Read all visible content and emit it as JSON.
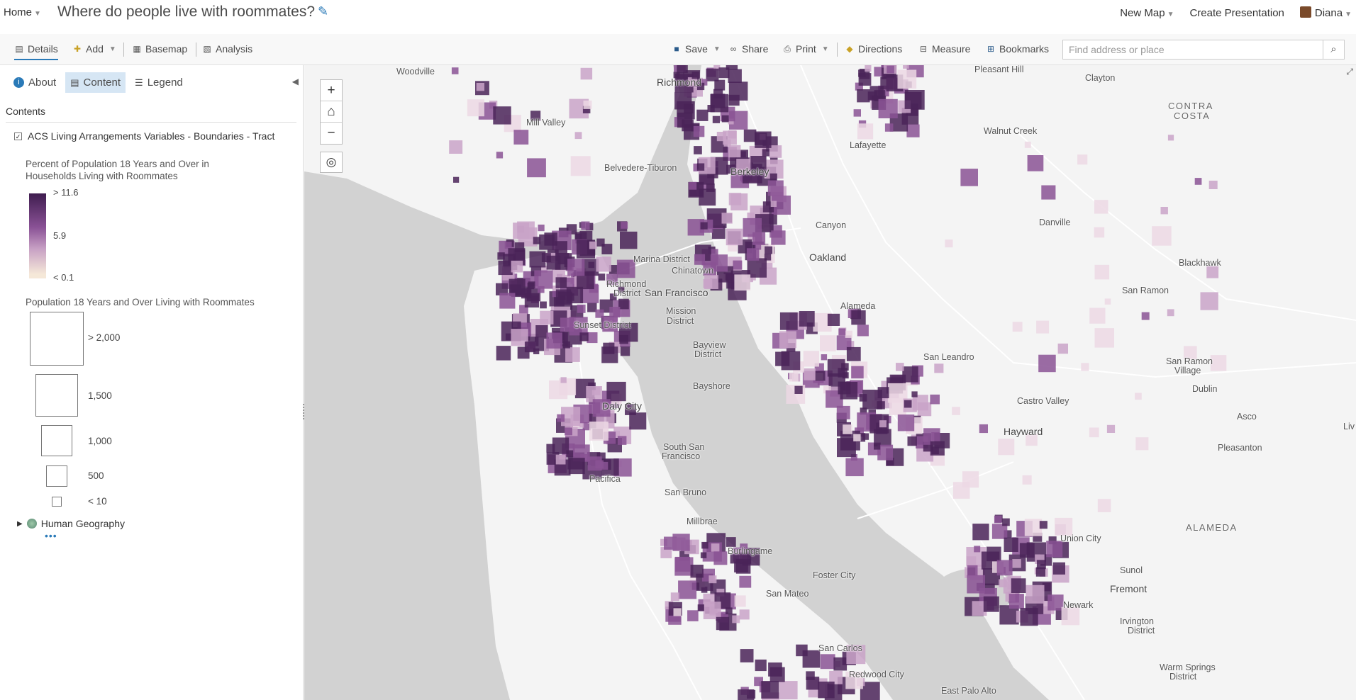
{
  "topbar": {
    "home": "Home",
    "map_title": "Where do people live with roommates?",
    "new_map": "New Map",
    "create_presentation": "Create Presentation",
    "user": "Diana"
  },
  "toolbar": {
    "details": "Details",
    "add": "Add",
    "basemap": "Basemap",
    "analysis": "Analysis",
    "save": "Save",
    "share": "Share",
    "print": "Print",
    "directions": "Directions",
    "measure": "Measure",
    "bookmarks": "Bookmarks",
    "search_placeholder": "Find address or place"
  },
  "sidebar": {
    "tabs": {
      "about": "About",
      "content": "Content",
      "legend": "Legend"
    },
    "contents_heading": "Contents",
    "layer_name": "ACS Living Arrangements Variables - Boundaries - Tract",
    "legend_color_title_1": "Percent of Population 18 Years and Over in",
    "legend_color_title_2": "Households Living with Roommates",
    "ramp_high": "> 11.6",
    "ramp_mid": "5.9",
    "ramp_low": "< 0.1",
    "legend_size_title": "Population 18 Years and Over Living with Roommates",
    "size_labels": [
      "> 2,000",
      "1,500",
      "1,000",
      "500",
      "< 10"
    ],
    "human_geography": "Human Geography",
    "more": "•••"
  },
  "map": {
    "colors": {
      "water": "#d2d2d2",
      "land": "#f4f4f4",
      "dark": "#4a2358",
      "mid": "#8a5294",
      "light": "#c9a3c8",
      "pale": "#ecd8e4"
    },
    "places": [
      "Woodville",
      "Richmond",
      "Pleasant Hill",
      "Clayton",
      "Mill Valley",
      "CONTRA",
      "COSTA",
      "Walnut Creek",
      "Lafayette",
      "Belvedere-Tiburon",
      "Berkeley",
      "Canyon",
      "Danville",
      "Oakland",
      "Marina District",
      "Chinatown",
      "Richmond",
      "District",
      "San Francisco",
      "Blackhawk",
      "Mission",
      "District",
      "Alameda",
      "San Ramon",
      "Sunset District",
      "Bayview",
      "District",
      "San Leandro",
      "San Ramon",
      "Village",
      "Dublin",
      "Bayshore",
      "Castro Valley",
      "Daly City",
      "Asco",
      "Hayward",
      "Pleasanton",
      "South San",
      "Francisco",
      "Pacifica",
      "San Bruno",
      "ALAMEDA",
      "Millbrae",
      "Union City",
      "Burlingame",
      "Foster City",
      "Fremont",
      "Newark",
      "San Mateo",
      "Irvington",
      "District",
      "San Carlos",
      "Warm Springs",
      "District",
      "Redwood City",
      "East Palo Alto",
      "Liv",
      "Sunol"
    ]
  }
}
